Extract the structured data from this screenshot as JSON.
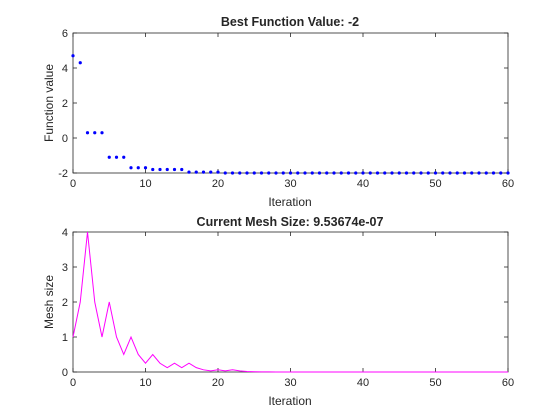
{
  "chart_data": [
    {
      "type": "scatter",
      "title": "Best Function Value: -2",
      "xlabel": "Iteration",
      "ylabel": "Function value",
      "xlim": [
        0,
        60
      ],
      "ylim": [
        -2,
        6
      ],
      "xticks": [
        "0",
        "10",
        "20",
        "30",
        "40",
        "50",
        "60"
      ],
      "yticks": [
        "-2",
        "0",
        "2",
        "4",
        "6"
      ],
      "marker_color": "#0000ff",
      "grid": false,
      "x": [
        0,
        1,
        2,
        3,
        4,
        5,
        6,
        7,
        8,
        9,
        10,
        11,
        12,
        13,
        14,
        15,
        16,
        17,
        18,
        19,
        20,
        21,
        22,
        23,
        24,
        25,
        26,
        27,
        28,
        29,
        30,
        31,
        32,
        33,
        34,
        35,
        36,
        37,
        38,
        39,
        40,
        41,
        42,
        43,
        44,
        45,
        46,
        47,
        48,
        49,
        50,
        51,
        52,
        53,
        54,
        55,
        56,
        57,
        58,
        59,
        60
      ],
      "y": [
        4.7,
        4.3,
        0.3,
        0.3,
        0.3,
        -1.1,
        -1.1,
        -1.1,
        -1.7,
        -1.7,
        -1.7,
        -1.8,
        -1.8,
        -1.8,
        -1.8,
        -1.8,
        -1.95,
        -1.95,
        -1.95,
        -1.95,
        -1.95,
        -2,
        -2,
        -2,
        -2,
        -2,
        -2,
        -2,
        -2,
        -2,
        -2,
        -2,
        -2,
        -2,
        -2,
        -2,
        -2,
        -2,
        -2,
        -2,
        -2,
        -2,
        -2,
        -2,
        -2,
        -2,
        -2,
        -2,
        -2,
        -2,
        -2,
        -2,
        -2,
        -2,
        -2,
        -2,
        -2,
        -2,
        -2,
        -2,
        -2
      ]
    },
    {
      "type": "line",
      "title": "Current Mesh Size: 9.53674e-07",
      "xlabel": "Iteration",
      "ylabel": "Mesh size",
      "xlim": [
        0,
        60
      ],
      "ylim": [
        0,
        4
      ],
      "xticks": [
        "0",
        "10",
        "20",
        "30",
        "40",
        "50",
        "60"
      ],
      "yticks": [
        "0",
        "1",
        "2",
        "3",
        "4"
      ],
      "line_color": "#ff00ff",
      "grid": false,
      "x": [
        0,
        1,
        2,
        3,
        4,
        5,
        6,
        7,
        8,
        9,
        10,
        11,
        12,
        13,
        14,
        15,
        16,
        17,
        18,
        19,
        20,
        21,
        22,
        23,
        24,
        25,
        26,
        27,
        28,
        29,
        30,
        31,
        32,
        33,
        34,
        35,
        36,
        37,
        38,
        39,
        40,
        41,
        42,
        43,
        44,
        45,
        46,
        47,
        48,
        49,
        50,
        51,
        52,
        53,
        54,
        55,
        56,
        57,
        58,
        59,
        60
      ],
      "y": [
        1,
        2,
        4,
        2,
        1,
        2,
        1,
        0.5,
        1,
        0.5,
        0.25,
        0.5,
        0.25,
        0.125,
        0.25,
        0.125,
        0.25,
        0.125,
        0.0625,
        0.03125,
        0.0625,
        0.03125,
        0.0625,
        0.03125,
        0.015625,
        0.0078,
        0.0039,
        0.002,
        0.001,
        0.0005,
        0.0002,
        0.0001,
        6e-05,
        3e-05,
        2e-05,
        1e-05,
        5e-06,
        2e-06,
        1e-06,
        1e-06,
        1e-06,
        1e-06,
        1e-06,
        1e-06,
        1e-06,
        1e-06,
        1e-06,
        1e-06,
        1e-06,
        1e-06,
        1e-06,
        1e-06,
        1e-06,
        1e-06,
        1e-06,
        1e-06,
        1e-06,
        1e-06,
        1e-06,
        1e-06,
        9.5e-07
      ]
    }
  ]
}
